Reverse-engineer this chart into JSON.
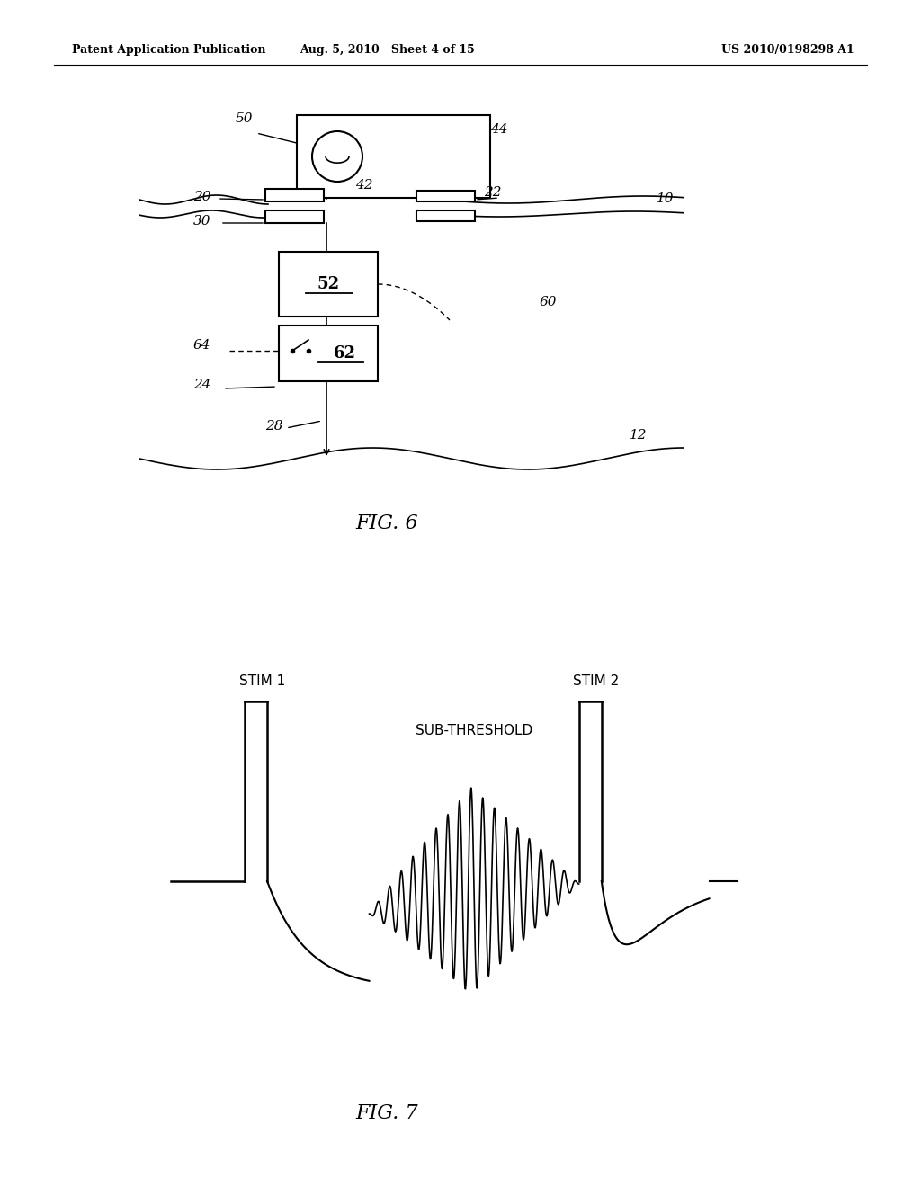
{
  "fig_width": 10.24,
  "fig_height": 13.2,
  "bg_color": "#ffffff",
  "header_left": "Patent Application Publication",
  "header_mid": "Aug. 5, 2010   Sheet 4 of 15",
  "header_right": "US 2010/0198298 A1",
  "fig6_label": "FIG. 6",
  "fig7_label": "FIG. 7"
}
